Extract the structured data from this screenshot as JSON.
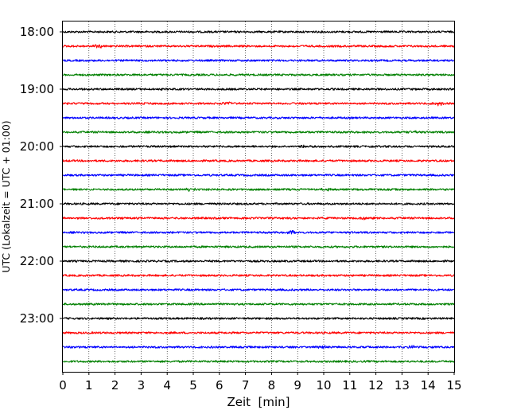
{
  "chart_data": {
    "type": "line",
    "subtype": "helicorder",
    "xlabel": "Zeit  [min]",
    "ylabel": "UTC (Lokalzeit = UTC + 01:00)",
    "xlim": [
      0,
      15
    ],
    "x_ticks": [
      "0",
      "1",
      "2",
      "3",
      "4",
      "5",
      "6",
      "7",
      "8",
      "9",
      "10",
      "11",
      "12",
      "13",
      "14",
      "15"
    ],
    "y_tick_labels": [
      "18:00",
      "19:00",
      "20:00",
      "21:00",
      "22:00",
      "23:00"
    ],
    "grid": "vertical dotted lines at each minute",
    "legend": "none",
    "trace_colors": [
      "#000000",
      "#ff0000",
      "#0000ff",
      "#008000"
    ],
    "trace_start_times": [
      "18:00",
      "18:15",
      "18:30",
      "18:45",
      "19:00",
      "19:15",
      "19:30",
      "19:45",
      "20:00",
      "20:15",
      "20:30",
      "20:45",
      "21:00",
      "21:15",
      "21:30",
      "21:45",
      "22:00",
      "22:15",
      "22:30",
      "22:45",
      "23:00",
      "23:15",
      "23:30",
      "23:45"
    ],
    "bursts": [
      {
        "trace": 1,
        "x": 1.35,
        "amp": 2.2
      },
      {
        "trace": 5,
        "x": 6.3,
        "amp": 1.5
      },
      {
        "trace": 5,
        "x": 14.4,
        "amp": 2.0
      },
      {
        "trace": 7,
        "x": 13.4,
        "amp": 1.6
      },
      {
        "trace": 8,
        "x": 9.2,
        "amp": 1.8
      },
      {
        "trace": 11,
        "x": 4.9,
        "amp": 1.8
      },
      {
        "trace": 11,
        "x": 10.1,
        "amp": 1.5
      },
      {
        "trace": 13,
        "x": 11.5,
        "amp": 1.5
      },
      {
        "trace": 14,
        "x": 8.8,
        "amp": 2.0
      },
      {
        "trace": 22,
        "x": 10.0,
        "amp": 1.4
      },
      {
        "trace": 22,
        "x": 13.4,
        "amp": 1.4
      }
    ]
  }
}
